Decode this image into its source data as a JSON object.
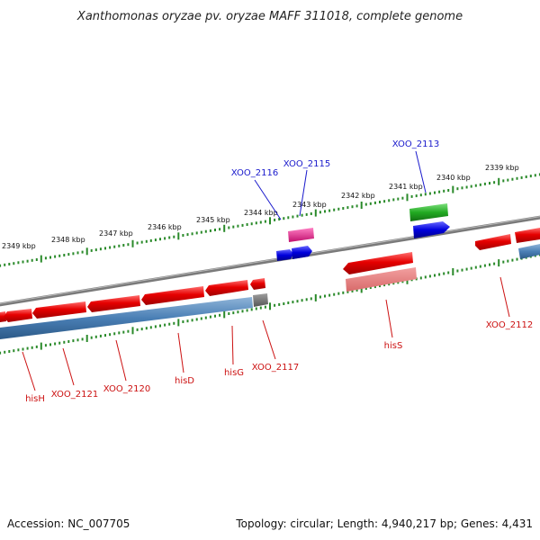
{
  "title": "Xanthomonas oryzae pv. oryzae MAFF 311018, complete genome",
  "kbp_labels": [
    "2349 kbp",
    "2348 kbp",
    "2347 kbp",
    "2346 kbp",
    "2345 kbp",
    "2344 kbp",
    "2343 kbp",
    "2342 kbp",
    "2341 kbp",
    "2340 kbp",
    "2339 kbp"
  ],
  "genes_top": [
    "XOO_2116",
    "XOO_2115",
    "XOO_2113"
  ],
  "genes_bottom": [
    "hisH",
    "XOO_2121",
    "XOO_2120",
    "hisD",
    "hisG",
    "XOO_2117",
    "hisS",
    "XOO_2112"
  ],
  "footer": {
    "accession": "Accession: NC_007705",
    "summary": "Topology: circular; Length: 4,940,217 bp; Genes: 4,431"
  },
  "colors": {
    "backbone": "#7a7a7a",
    "tick": "#2a8a2a",
    "gene_red": "#e60000",
    "gene_blue": "#0000dd",
    "gene_green": "#22aa22",
    "gene_magenta": "#e0208a",
    "cds_steelblue": "#4a7fb5",
    "pseudo_gray": "#6a6a6a",
    "label_blue": "#1a1acc",
    "label_red": "#cc1111"
  }
}
